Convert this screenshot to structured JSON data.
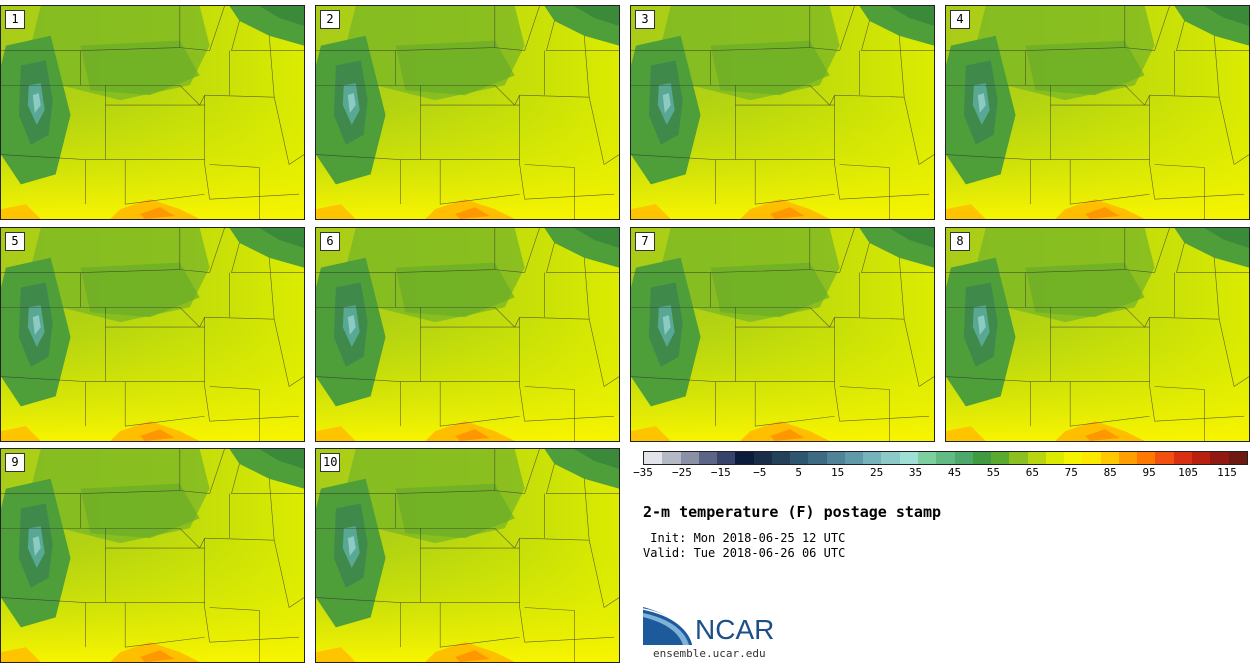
{
  "panels": [
    {
      "label": "1"
    },
    {
      "label": "2"
    },
    {
      "label": "3"
    },
    {
      "label": "4"
    },
    {
      "label": "5"
    },
    {
      "label": "6"
    },
    {
      "label": "7"
    },
    {
      "label": "8"
    },
    {
      "label": "9"
    },
    {
      "label": "10"
    }
  ],
  "colorbar": {
    "colors": [
      "#e2e4ea",
      "#b5b9c6",
      "#8a90a6",
      "#5c6586",
      "#374368",
      "#0c1d3c",
      "#1a2e4a",
      "#24415a",
      "#2e5670",
      "#3d6b84",
      "#4e8398",
      "#5f9aa8",
      "#74b4ba",
      "#8ccac8",
      "#9fe0d4",
      "#7ecfa0",
      "#62bb82",
      "#4ea86a",
      "#3f9a40",
      "#5aaa30",
      "#8cc020",
      "#b8d610",
      "#dcea00",
      "#f4f400",
      "#ffe800",
      "#ffc800",
      "#ffa000",
      "#ff7800",
      "#f25010",
      "#d83010",
      "#b82010",
      "#901a12",
      "#6e1a10"
    ],
    "tick_labels": [
      "−35",
      "−25",
      "−15",
      "−5",
      "5",
      "15",
      "25",
      "35",
      "45",
      "55",
      "65",
      "75",
      "85",
      "95",
      "105",
      "115"
    ]
  },
  "title": "2-m temperature (F) postage stamp",
  "init": " Init: Mon 2018-06-25 12 UTC",
  "valid": "Valid: Tue 2018-06-26 06 UTC",
  "logo": {
    "text": "NCAR",
    "url": "ensemble.ucar.edu"
  }
}
